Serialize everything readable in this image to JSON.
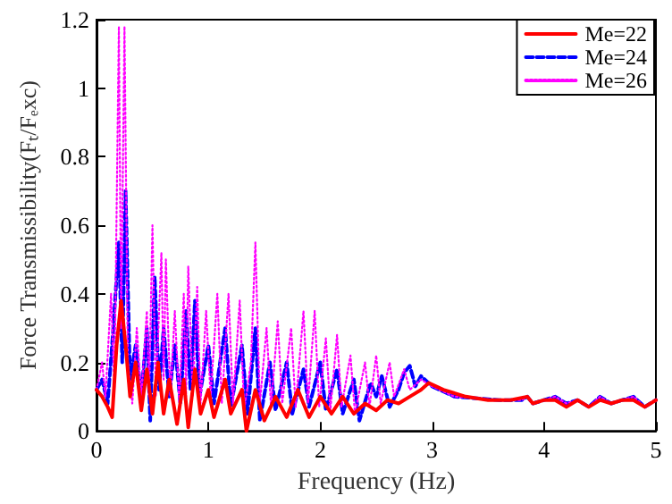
{
  "chart_data": {
    "type": "line",
    "xlabel": "Frequency (Hz)",
    "ylabel": "Force Transmissibility(Fₜ/Fₑxc)",
    "xlim": [
      0,
      5
    ],
    "xticks": [
      0,
      1,
      2,
      3,
      4,
      5
    ],
    "ylim": [
      0,
      1.2
    ],
    "yticks": [
      0,
      0.2,
      0.4,
      0.6,
      0.8,
      1,
      1.2
    ],
    "grid": false,
    "legend": "top right",
    "marker": "none",
    "series": [
      {
        "name": "Me=22",
        "color": "#ff0000",
        "line_style": "solid",
        "x": [
          0,
          0.05,
          0.1,
          0.14,
          0.18,
          0.22,
          0.26,
          0.3,
          0.35,
          0.4,
          0.45,
          0.5,
          0.55,
          0.6,
          0.65,
          0.72,
          0.78,
          0.82,
          0.88,
          0.93,
          1.0,
          1.05,
          1.15,
          1.2,
          1.3,
          1.34,
          1.42,
          1.5,
          1.6,
          1.7,
          1.8,
          1.9,
          2.0,
          2.1,
          2.2,
          2.3,
          2.4,
          2.5,
          2.6,
          2.7,
          2.8,
          2.9,
          2.97,
          3.1,
          3.3,
          3.5,
          3.7,
          3.85,
          3.9,
          4.0,
          4.1,
          4.2,
          4.3,
          4.4,
          4.5,
          4.6,
          4.7,
          4.8,
          4.9,
          5.0
        ],
        "values": [
          0.12,
          0.1,
          0.07,
          0.04,
          0.25,
          0.38,
          0.25,
          0.1,
          0.2,
          0.06,
          0.18,
          0.05,
          0.2,
          0.05,
          0.15,
          0.02,
          0.15,
          0.01,
          0.18,
          0.05,
          0.12,
          0.04,
          0.15,
          0.05,
          0.12,
          0,
          0.12,
          0.03,
          0.1,
          0.04,
          0.12,
          0.04,
          0.1,
          0.05,
          0.1,
          0.05,
          0.08,
          0.06,
          0.09,
          0.08,
          0.1,
          0.12,
          0.14,
          0.12,
          0.1,
          0.09,
          0.09,
          0.1,
          0.08,
          0.09,
          0.09,
          0.07,
          0.09,
          0.07,
          0.09,
          0.08,
          0.09,
          0.09,
          0.07,
          0.09
        ]
      },
      {
        "name": "Me=24",
        "color": "#0000ff",
        "line_style": "dashed",
        "x": [
          0,
          0.05,
          0.1,
          0.15,
          0.2,
          0.23,
          0.26,
          0.3,
          0.35,
          0.4,
          0.45,
          0.48,
          0.52,
          0.56,
          0.6,
          0.65,
          0.7,
          0.75,
          0.8,
          0.84,
          0.88,
          0.92,
          1.0,
          1.05,
          1.15,
          1.2,
          1.3,
          1.35,
          1.42,
          1.46,
          1.55,
          1.6,
          1.7,
          1.75,
          1.85,
          1.9,
          2.0,
          2.05,
          2.15,
          2.2,
          2.3,
          2.35,
          2.45,
          2.5,
          2.55,
          2.62,
          2.7,
          2.75,
          2.8,
          2.85,
          2.9,
          3.0,
          3.2,
          3.4,
          3.6,
          3.8,
          3.85,
          3.9,
          4.0,
          4.1,
          4.2,
          4.3,
          4.4,
          4.5,
          4.6,
          4.7,
          4.8,
          4.9,
          5.0
        ],
        "values": [
          0.12,
          0.15,
          0.08,
          0.3,
          0.55,
          0.2,
          0.7,
          0.15,
          0.25,
          0.1,
          0.3,
          0.03,
          0.45,
          0.12,
          0.3,
          0.1,
          0.25,
          0.08,
          0.35,
          0.12,
          0.38,
          0.1,
          0.25,
          0.08,
          0.3,
          0.07,
          0.25,
          0.05,
          0.3,
          0.03,
          0.2,
          0.06,
          0.2,
          0.05,
          0.18,
          0.07,
          0.2,
          0.06,
          0.18,
          0.05,
          0.15,
          0.03,
          0.14,
          0.1,
          0.16,
          0.07,
          0.12,
          0.17,
          0.19,
          0.13,
          0.16,
          0.13,
          0.1,
          0.095,
          0.09,
          0.09,
          0.1,
          0.08,
          0.09,
          0.1,
          0.08,
          0.09,
          0.07,
          0.1,
          0.08,
          0.09,
          0.1,
          0.07,
          0.09
        ]
      },
      {
        "name": "Me=26",
        "color": "#ff00ff",
        "line_style": "dotted",
        "x": [
          0,
          0.05,
          0.08,
          0.13,
          0.16,
          0.2,
          0.22,
          0.25,
          0.28,
          0.32,
          0.36,
          0.4,
          0.45,
          0.47,
          0.5,
          0.53,
          0.58,
          0.6,
          0.62,
          0.66,
          0.7,
          0.74,
          0.78,
          0.8,
          0.82,
          0.86,
          0.9,
          0.93,
          0.98,
          1.02,
          1.08,
          1.12,
          1.18,
          1.22,
          1.28,
          1.32,
          1.38,
          1.42,
          1.46,
          1.52,
          1.56,
          1.62,
          1.66,
          1.74,
          1.78,
          1.85,
          1.89,
          1.95,
          1.99,
          2.05,
          2.09,
          2.15,
          2.19,
          2.27,
          2.31,
          2.4,
          2.44,
          2.5,
          2.54,
          2.62,
          2.66,
          2.75,
          2.8,
          2.9,
          3.0,
          3.2,
          3.4,
          3.6,
          3.8,
          3.85,
          3.9,
          4.0,
          4.1,
          4.2,
          4.3,
          4.4,
          4.5,
          4.6,
          4.7,
          4.8,
          4.9,
          5.0
        ],
        "values": [
          0.12,
          0.2,
          0.1,
          0.4,
          0.12,
          1.18,
          0.3,
          1.18,
          0.2,
          0.08,
          0.3,
          0.1,
          0.35,
          0.1,
          0.6,
          0.1,
          0.52,
          0.15,
          0.5,
          0.1,
          0.35,
          0.08,
          0.4,
          0.1,
          0.48,
          0.1,
          0.42,
          0.08,
          0.35,
          0.1,
          0.4,
          0.08,
          0.4,
          0.08,
          0.38,
          0.06,
          0.2,
          0.55,
          0.08,
          0.3,
          0.07,
          0.32,
          0.08,
          0.3,
          0.07,
          0.35,
          0.08,
          0.35,
          0.07,
          0.27,
          0.06,
          0.28,
          0.07,
          0.22,
          0.05,
          0.2,
          0.07,
          0.22,
          0.08,
          0.2,
          0.1,
          0.18,
          0.12,
          0.15,
          0.13,
          0.1,
          0.095,
          0.09,
          0.09,
          0.1,
          0.08,
          0.09,
          0.1,
          0.08,
          0.09,
          0.07,
          0.1,
          0.08,
          0.09,
          0.1,
          0.07,
          0.09
        ]
      }
    ]
  }
}
